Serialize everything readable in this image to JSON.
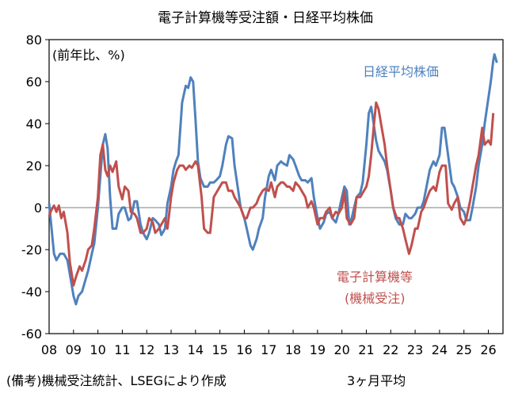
{
  "chart_data": {
    "type": "line",
    "title": "電子計算機等受注額・日経平均株価",
    "unit_label": "(前年比、%)",
    "ylim": [
      -60,
      80
    ],
    "y_ticks": [
      "80",
      "60",
      "40",
      "20",
      "0",
      "-20",
      "-40",
      "-60"
    ],
    "x_range": [
      2008.0,
      2026.6
    ],
    "x_ticks": [
      "08",
      "09",
      "10",
      "11",
      "12",
      "13",
      "14",
      "15",
      "16",
      "17",
      "18",
      "19",
      "20",
      "21",
      "22",
      "23",
      "24",
      "25",
      "26"
    ],
    "zero_line": true,
    "grid": false,
    "series": [
      {
        "name": "日経平均株価",
        "color": "#4f81bd",
        "points": [
          [
            2008.0,
            2
          ],
          [
            2008.1,
            -10
          ],
          [
            2008.2,
            -22
          ],
          [
            2008.3,
            -25
          ],
          [
            2008.45,
            -22
          ],
          [
            2008.6,
            -22
          ],
          [
            2008.75,
            -25
          ],
          [
            2008.9,
            -35
          ],
          [
            2009.0,
            -42
          ],
          [
            2009.1,
            -46
          ],
          [
            2009.2,
            -42
          ],
          [
            2009.35,
            -40
          ],
          [
            2009.5,
            -34
          ],
          [
            2009.6,
            -30
          ],
          [
            2009.75,
            -22
          ],
          [
            2009.85,
            -17
          ],
          [
            2010.0,
            0
          ],
          [
            2010.1,
            15
          ],
          [
            2010.2,
            30
          ],
          [
            2010.3,
            35
          ],
          [
            2010.4,
            28
          ],
          [
            2010.5,
            5
          ],
          [
            2010.6,
            -10
          ],
          [
            2010.75,
            -10
          ],
          [
            2010.85,
            -3
          ],
          [
            2011.0,
            0
          ],
          [
            2011.1,
            0
          ],
          [
            2011.25,
            -6
          ],
          [
            2011.35,
            -5
          ],
          [
            2011.5,
            3
          ],
          [
            2011.6,
            3
          ],
          [
            2011.75,
            -8
          ],
          [
            2011.85,
            -12
          ],
          [
            2012.0,
            -15
          ],
          [
            2012.1,
            -12
          ],
          [
            2012.25,
            -5
          ],
          [
            2012.35,
            -6
          ],
          [
            2012.5,
            -8
          ],
          [
            2012.6,
            -13
          ],
          [
            2012.75,
            -10
          ],
          [
            2012.85,
            2
          ],
          [
            2013.0,
            10
          ],
          [
            2013.1,
            18
          ],
          [
            2013.2,
            22
          ],
          [
            2013.3,
            25
          ],
          [
            2013.45,
            50
          ],
          [
            2013.6,
            58
          ],
          [
            2013.7,
            57
          ],
          [
            2013.8,
            62
          ],
          [
            2013.9,
            60
          ],
          [
            2014.0,
            42
          ],
          [
            2014.1,
            22
          ],
          [
            2014.2,
            14
          ],
          [
            2014.35,
            10
          ],
          [
            2014.5,
            10
          ],
          [
            2014.6,
            12
          ],
          [
            2014.75,
            12
          ],
          [
            2014.85,
            13
          ],
          [
            2015.0,
            15
          ],
          [
            2015.1,
            20
          ],
          [
            2015.25,
            30
          ],
          [
            2015.35,
            34
          ],
          [
            2015.5,
            33
          ],
          [
            2015.6,
            20
          ],
          [
            2015.75,
            8
          ],
          [
            2015.85,
            0
          ],
          [
            2016.0,
            -5
          ],
          [
            2016.1,
            -10
          ],
          [
            2016.25,
            -18
          ],
          [
            2016.35,
            -20
          ],
          [
            2016.5,
            -15
          ],
          [
            2016.6,
            -10
          ],
          [
            2016.75,
            -5
          ],
          [
            2016.85,
            5
          ],
          [
            2017.0,
            15
          ],
          [
            2017.1,
            18
          ],
          [
            2017.25,
            13
          ],
          [
            2017.35,
            20
          ],
          [
            2017.5,
            22
          ],
          [
            2017.6,
            21
          ],
          [
            2017.75,
            20
          ],
          [
            2017.85,
            25
          ],
          [
            2018.0,
            23
          ],
          [
            2018.1,
            20
          ],
          [
            2018.25,
            15
          ],
          [
            2018.35,
            13
          ],
          [
            2018.5,
            13
          ],
          [
            2018.6,
            12
          ],
          [
            2018.75,
            14
          ],
          [
            2018.85,
            5
          ],
          [
            2019.0,
            -5
          ],
          [
            2019.1,
            -10
          ],
          [
            2019.25,
            -7
          ],
          [
            2019.35,
            -3
          ],
          [
            2019.5,
            -2
          ],
          [
            2019.6,
            -5
          ],
          [
            2019.75,
            -7
          ],
          [
            2019.85,
            -3
          ],
          [
            2020.0,
            5
          ],
          [
            2020.1,
            10
          ],
          [
            2020.2,
            8
          ],
          [
            2020.3,
            -8
          ],
          [
            2020.4,
            -5
          ],
          [
            2020.5,
            0
          ],
          [
            2020.6,
            5
          ],
          [
            2020.75,
            7
          ],
          [
            2020.85,
            12
          ],
          [
            2021.0,
            30
          ],
          [
            2021.1,
            45
          ],
          [
            2021.2,
            48
          ],
          [
            2021.3,
            40
          ],
          [
            2021.4,
            32
          ],
          [
            2021.5,
            27
          ],
          [
            2021.6,
            25
          ],
          [
            2021.75,
            22
          ],
          [
            2021.85,
            18
          ],
          [
            2022.0,
            8
          ],
          [
            2022.1,
            0
          ],
          [
            2022.2,
            -5
          ],
          [
            2022.35,
            -8
          ],
          [
            2022.5,
            -8
          ],
          [
            2022.6,
            -3
          ],
          [
            2022.75,
            -5
          ],
          [
            2022.85,
            -5
          ],
          [
            2023.0,
            -3
          ],
          [
            2023.1,
            0
          ],
          [
            2023.25,
            0
          ],
          [
            2023.35,
            3
          ],
          [
            2023.5,
            12
          ],
          [
            2023.6,
            18
          ],
          [
            2023.75,
            22
          ],
          [
            2023.85,
            20
          ],
          [
            2024.0,
            25
          ],
          [
            2024.1,
            38
          ],
          [
            2024.2,
            38
          ],
          [
            2024.35,
            25
          ],
          [
            2024.5,
            12
          ],
          [
            2024.6,
            10
          ],
          [
            2024.75,
            5
          ],
          [
            2024.85,
            0
          ],
          [
            2025.0,
            -2
          ],
          [
            2025.1,
            -6
          ],
          [
            2025.25,
            -6
          ],
          [
            2025.35,
            0
          ],
          [
            2025.5,
            10
          ],
          [
            2025.6,
            20
          ],
          [
            2025.75,
            30
          ],
          [
            2025.85,
            40
          ],
          [
            2026.0,
            52
          ],
          [
            2026.1,
            60
          ],
          [
            2026.2,
            70
          ],
          [
            2026.25,
            73
          ],
          [
            2026.35,
            69
          ]
        ]
      },
      {
        "name": "電子計算機等 (機械受注)",
        "color": "#c0504d",
        "points": [
          [
            2008.0,
            -4
          ],
          [
            2008.1,
            -1
          ],
          [
            2008.2,
            1
          ],
          [
            2008.3,
            -2
          ],
          [
            2008.4,
            1
          ],
          [
            2008.5,
            -5
          ],
          [
            2008.6,
            -2
          ],
          [
            2008.75,
            -12
          ],
          [
            2008.85,
            -26
          ],
          [
            2009.0,
            -37
          ],
          [
            2009.1,
            -33
          ],
          [
            2009.25,
            -28
          ],
          [
            2009.35,
            -30
          ],
          [
            2009.5,
            -25
          ],
          [
            2009.6,
            -20
          ],
          [
            2009.75,
            -18
          ],
          [
            2009.85,
            -10
          ],
          [
            2010.0,
            5
          ],
          [
            2010.1,
            25
          ],
          [
            2010.2,
            30
          ],
          [
            2010.3,
            18
          ],
          [
            2010.4,
            15
          ],
          [
            2010.5,
            20
          ],
          [
            2010.6,
            17
          ],
          [
            2010.75,
            22
          ],
          [
            2010.85,
            10
          ],
          [
            2011.0,
            4
          ],
          [
            2011.1,
            10
          ],
          [
            2011.25,
            8
          ],
          [
            2011.35,
            -2
          ],
          [
            2011.5,
            -3
          ],
          [
            2011.6,
            -5
          ],
          [
            2011.75,
            -12
          ],
          [
            2011.85,
            -12
          ],
          [
            2012.0,
            -10
          ],
          [
            2012.1,
            -5
          ],
          [
            2012.25,
            -7
          ],
          [
            2012.35,
            -12
          ],
          [
            2012.5,
            -10
          ],
          [
            2012.6,
            -8
          ],
          [
            2012.75,
            -5
          ],
          [
            2012.85,
            -10
          ],
          [
            2013.0,
            5
          ],
          [
            2013.1,
            12
          ],
          [
            2013.25,
            18
          ],
          [
            2013.35,
            20
          ],
          [
            2013.5,
            20
          ],
          [
            2013.6,
            18
          ],
          [
            2013.75,
            20
          ],
          [
            2013.85,
            19
          ],
          [
            2014.0,
            22
          ],
          [
            2014.1,
            20
          ],
          [
            2014.25,
            5
          ],
          [
            2014.35,
            -10
          ],
          [
            2014.5,
            -12
          ],
          [
            2014.6,
            -12
          ],
          [
            2014.75,
            5
          ],
          [
            2014.85,
            7
          ],
          [
            2015.0,
            10
          ],
          [
            2015.1,
            12
          ],
          [
            2015.25,
            12
          ],
          [
            2015.35,
            8
          ],
          [
            2015.5,
            8
          ],
          [
            2015.6,
            5
          ],
          [
            2015.75,
            2
          ],
          [
            2015.85,
            0
          ],
          [
            2016.0,
            -5
          ],
          [
            2016.1,
            -5
          ],
          [
            2016.25,
            0
          ],
          [
            2016.35,
            0
          ],
          [
            2016.5,
            2
          ],
          [
            2016.6,
            5
          ],
          [
            2016.75,
            8
          ],
          [
            2016.85,
            9
          ],
          [
            2017.0,
            8
          ],
          [
            2017.1,
            12
          ],
          [
            2017.25,
            5
          ],
          [
            2017.35,
            10
          ],
          [
            2017.5,
            12
          ],
          [
            2017.6,
            12
          ],
          [
            2017.75,
            10
          ],
          [
            2017.85,
            10
          ],
          [
            2018.0,
            8
          ],
          [
            2018.1,
            12
          ],
          [
            2018.25,
            10
          ],
          [
            2018.35,
            8
          ],
          [
            2018.5,
            5
          ],
          [
            2018.6,
            0
          ],
          [
            2018.75,
            3
          ],
          [
            2018.85,
            0
          ],
          [
            2019.0,
            -8
          ],
          [
            2019.1,
            -5
          ],
          [
            2019.25,
            -5
          ],
          [
            2019.35,
            -2
          ],
          [
            2019.5,
            0
          ],
          [
            2019.6,
            -5
          ],
          [
            2019.75,
            -2
          ],
          [
            2019.85,
            -3
          ],
          [
            2020.0,
            0
          ],
          [
            2020.1,
            8
          ],
          [
            2020.2,
            -5
          ],
          [
            2020.35,
            -8
          ],
          [
            2020.5,
            -5
          ],
          [
            2020.6,
            5
          ],
          [
            2020.75,
            5
          ],
          [
            2020.85,
            7
          ],
          [
            2021.0,
            10
          ],
          [
            2021.1,
            15
          ],
          [
            2021.2,
            25
          ],
          [
            2021.3,
            38
          ],
          [
            2021.4,
            50
          ],
          [
            2021.5,
            47
          ],
          [
            2021.6,
            40
          ],
          [
            2021.75,
            30
          ],
          [
            2021.85,
            20
          ],
          [
            2022.0,
            8
          ],
          [
            2022.1,
            0
          ],
          [
            2022.25,
            -5
          ],
          [
            2022.35,
            -5
          ],
          [
            2022.5,
            -10
          ],
          [
            2022.6,
            -15
          ],
          [
            2022.75,
            -22
          ],
          [
            2022.85,
            -18
          ],
          [
            2023.0,
            -10
          ],
          [
            2023.1,
            -10
          ],
          [
            2023.25,
            -2
          ],
          [
            2023.35,
            0
          ],
          [
            2023.5,
            5
          ],
          [
            2023.6,
            8
          ],
          [
            2023.75,
            10
          ],
          [
            2023.85,
            8
          ],
          [
            2024.0,
            17
          ],
          [
            2024.1,
            20
          ],
          [
            2024.25,
            20
          ],
          [
            2024.35,
            2
          ],
          [
            2024.5,
            -1
          ],
          [
            2024.6,
            2
          ],
          [
            2024.75,
            5
          ],
          [
            2024.85,
            -5
          ],
          [
            2025.0,
            -8
          ],
          [
            2025.1,
            -5
          ],
          [
            2025.25,
            3
          ],
          [
            2025.35,
            10
          ],
          [
            2025.5,
            20
          ],
          [
            2025.6,
            25
          ],
          [
            2025.75,
            38
          ],
          [
            2025.85,
            30
          ],
          [
            2026.0,
            32
          ],
          [
            2026.1,
            30
          ],
          [
            2026.2,
            45
          ]
        ]
      }
    ]
  },
  "annotations": {
    "nikkei_label": "日経平均株価",
    "machinery_label_line1": "電子計算機等",
    "machinery_label_line2": "(機械受注)"
  },
  "footer": {
    "source": "(備考)機械受注統計、LSEGにより作成",
    "note": "3ヶ月平均"
  }
}
